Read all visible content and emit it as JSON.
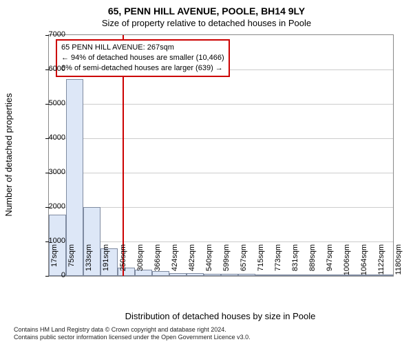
{
  "title_main": "65, PENN HILL AVENUE, POOLE, BH14 9LY",
  "title_sub": "Size of property relative to detached houses in Poole",
  "ylabel": "Number of detached properties",
  "xlabel": "Distribution of detached houses by size in Poole",
  "chart": {
    "type": "histogram",
    "ylim_max": 7000,
    "ytick_step": 1000,
    "yticks": [
      0,
      1000,
      2000,
      3000,
      4000,
      5000,
      6000,
      7000
    ],
    "xticks": [
      "17sqm",
      "75sqm",
      "133sqm",
      "191sqm",
      "250sqm",
      "308sqm",
      "366sqm",
      "424sqm",
      "482sqm",
      "540sqm",
      "599sqm",
      "657sqm",
      "715sqm",
      "773sqm",
      "831sqm",
      "889sqm",
      "947sqm",
      "1006sqm",
      "1064sqm",
      "1122sqm",
      "1180sqm"
    ],
    "bar_values": [
      1780,
      5720,
      2000,
      800,
      240,
      180,
      140,
      80,
      80,
      70,
      70,
      60,
      20,
      10,
      10,
      10,
      5,
      5,
      5,
      5
    ],
    "bar_color": "#dde7f7",
    "bar_border": "#7e8aa0",
    "grid_color": "#cccccc",
    "plot_border": "#888888",
    "background": "#ffffff",
    "marker": {
      "position_sqm": 267,
      "color": "#cc0000"
    },
    "info_box": {
      "border_color": "#cc0000",
      "line1": "65 PENN HILL AVENUE: 267sqm",
      "line2": "← 94% of detached houses are smaller (10,466)",
      "line3": "6% of semi-detached houses are larger (639) →"
    }
  },
  "footer": {
    "line1": "Contains HM Land Registry data © Crown copyright and database right 2024.",
    "line2": "Contains public sector information licensed under the Open Government Licence v3.0."
  }
}
